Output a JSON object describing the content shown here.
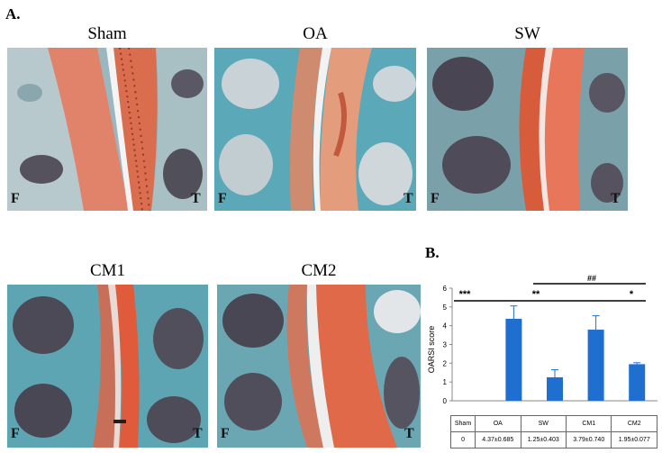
{
  "figure": {
    "panel_a_label": "A.",
    "panel_b_label": "B."
  },
  "micrographs": [
    {
      "title": "Sham",
      "left_label": "F",
      "right_label": "T"
    },
    {
      "title": "OA",
      "left_label": "F",
      "right_label": "T"
    },
    {
      "title": "SW",
      "left_label": "F",
      "right_label": "T"
    },
    {
      "title": "CM1",
      "left_label": "F",
      "right_label": "T"
    },
    {
      "title": "CM2",
      "left_label": "F",
      "right_label": "T"
    }
  ],
  "colors": {
    "bar": "#1f6fd1",
    "safranin_red": "#d9694a",
    "fast_green": "#5aa5b0",
    "marrow": "#3d3a45"
  },
  "chart_data": {
    "type": "bar",
    "categories": [
      "Sham",
      "OA",
      "SW",
      "CM1",
      "CM2"
    ],
    "values": [
      0,
      4.37,
      1.25,
      3.79,
      1.95
    ],
    "errors": [
      0,
      0.685,
      0.403,
      0.74,
      0.077
    ],
    "ylabel": "OARSI score",
    "ylim": [
      0,
      6
    ],
    "yticks": [
      "0",
      "1",
      "2",
      "3",
      "4",
      "5",
      "6"
    ],
    "table_header": [
      "Sham",
      "OA",
      "SW",
      "CM1",
      "CM2"
    ],
    "table_values": [
      "0",
      "4.37±0.685",
      "1.25±0.403",
      "3.79±0.740",
      "1.95±0.077"
    ],
    "annotations": {
      "sig1": "***",
      "sig2": "**",
      "sig3": "*",
      "sig4": "##"
    }
  }
}
